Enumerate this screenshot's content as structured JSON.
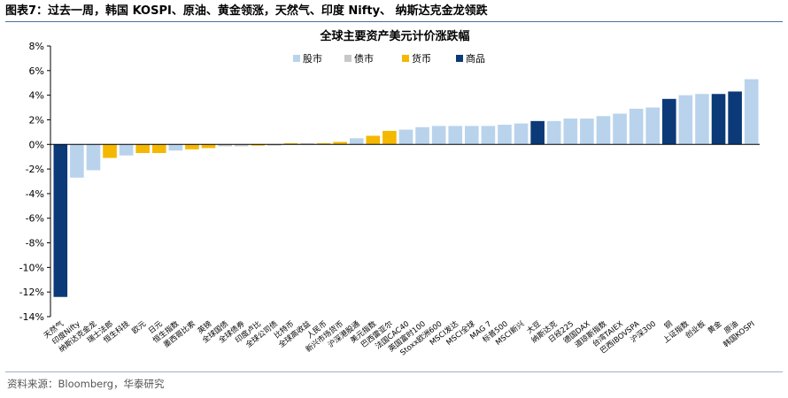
{
  "header": {
    "title": "图表7：过去一周，韩国 KOSPI、原油、黄金领涨，天然气、印度 Nifty、 纳斯达克金龙领跌"
  },
  "footer": {
    "source": "资料来源：Bloomberg，华泰研究"
  },
  "colors": {
    "股市": "#b9d3ec",
    "债市": "#c8c8c8",
    "货币": "#f5b800",
    "商品": "#0c3a78"
  },
  "chart_data": {
    "type": "bar",
    "title": "全球主要资产美元计价涨跌幅",
    "ylim": [
      -14,
      8
    ],
    "yticks": [
      "8%",
      "6%",
      "4%",
      "2%",
      "0%",
      "-2%",
      "-4%",
      "-6%",
      "-8%",
      "-10%",
      "-12%",
      "-14%"
    ],
    "legend": [
      "股市",
      "债市",
      "货币",
      "商品"
    ],
    "legend_position": "top",
    "grid": false,
    "categories": [
      "天然气",
      "印度Nifty",
      "纳斯达克金龙",
      "瑞士法郎",
      "恒生科技",
      "欧元",
      "日元",
      "恒生指数",
      "墨西哥比索",
      "英镑",
      "全球国债",
      "全球债券",
      "印度卢比",
      "全球公司债",
      "比特币",
      "全球高收益",
      "人民币",
      "新兴市场货币",
      "沪深港股通",
      "美元指数",
      "巴西雷亚尔",
      "法国CAC40",
      "英国富时100",
      "Stoxx欧洲600",
      "MSCI发达",
      "MSCI全球",
      "MAG 7",
      "标普500",
      "MSCI新兴",
      "大豆",
      "纳斯达克",
      "日经225",
      "德国DAX",
      "道琼斯指数",
      "台湾TAIEX",
      "巴西IBOVSPA",
      "沪深300",
      "铜",
      "上证指数",
      "创业板",
      "黄金",
      "原油",
      "韩国KOSPI"
    ],
    "values": [
      -12.4,
      -2.7,
      -2.1,
      -1.1,
      -0.9,
      -0.7,
      -0.7,
      -0.5,
      -0.4,
      -0.3,
      -0.15,
      -0.15,
      -0.1,
      -0.1,
      0.1,
      0.1,
      0.1,
      0.2,
      0.5,
      0.7,
      1.1,
      1.2,
      1.4,
      1.5,
      1.5,
      1.5,
      1.5,
      1.6,
      1.7,
      1.9,
      1.9,
      2.1,
      2.1,
      2.3,
      2.5,
      2.9,
      3.0,
      3.7,
      4.0,
      4.1,
      4.1,
      4.3,
      5.3
    ],
    "groups": [
      "商品",
      "股市",
      "股市",
      "货币",
      "股市",
      "货币",
      "货币",
      "股市",
      "货币",
      "货币",
      "债市",
      "债市",
      "货币",
      "债市",
      "货币",
      "债市",
      "货币",
      "货币",
      "股市",
      "货币",
      "货币",
      "股市",
      "股市",
      "股市",
      "股市",
      "股市",
      "股市",
      "股市",
      "股市",
      "商品",
      "股市",
      "股市",
      "股市",
      "股市",
      "股市",
      "股市",
      "股市",
      "商品",
      "股市",
      "股市",
      "商品",
      "商品",
      "股市"
    ]
  }
}
